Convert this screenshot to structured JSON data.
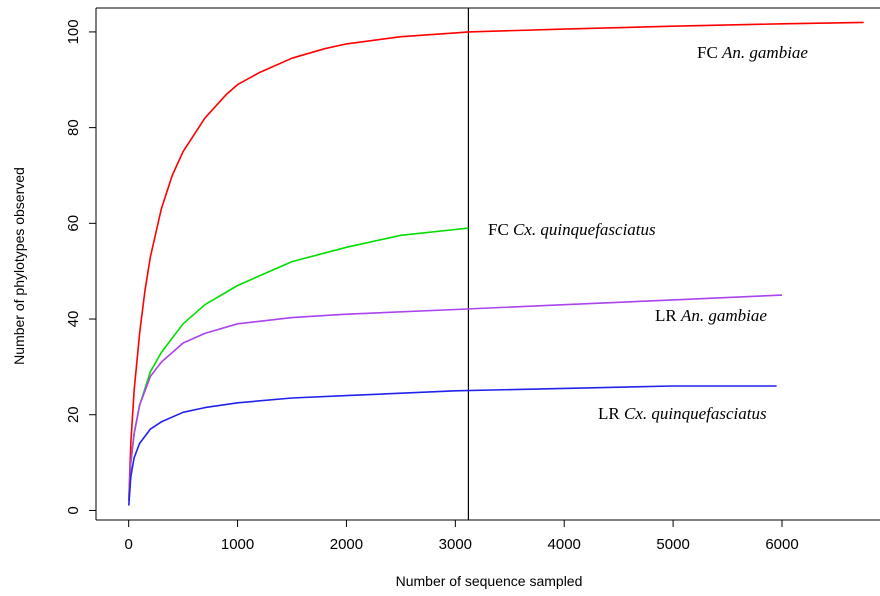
{
  "chart_data": {
    "type": "line",
    "title": "",
    "xlabel": "Number of sequence sampled",
    "ylabel": "Number of phylotypes observed",
    "xlim": [
      -300,
      6900
    ],
    "ylim": [
      -2,
      105
    ],
    "xticks": [
      0,
      1000,
      2000,
      3000,
      4000,
      5000,
      6000
    ],
    "yticks": [
      0,
      20,
      40,
      60,
      80,
      100
    ],
    "vline": 3120,
    "grid": false,
    "series": [
      {
        "name_prefix": "FC",
        "name_species": "An. gambiae",
        "color": "#ff0000",
        "x": [
          1,
          20,
          50,
          100,
          150,
          200,
          300,
          400,
          500,
          700,
          900,
          1000,
          1200,
          1500,
          1800,
          2000,
          2500,
          3000,
          3120,
          4000,
          5000,
          6000,
          6750
        ],
        "y": [
          2,
          14,
          25,
          37,
          46,
          53,
          63,
          70,
          75,
          82,
          87,
          89,
          91.5,
          94.5,
          96.5,
          97.5,
          99,
          99.8,
          100,
          100.6,
          101.2,
          101.7,
          102
        ]
      },
      {
        "name_prefix": "FC",
        "name_species": "Cx. quinquefasciatus",
        "color": "#00dd00",
        "x": [
          1,
          20,
          50,
          100,
          200,
          300,
          500,
          700,
          1000,
          1500,
          2000,
          2500,
          3000,
          3120
        ],
        "y": [
          2,
          10,
          16,
          22,
          29,
          33,
          39,
          43,
          47,
          52,
          55,
          57.5,
          58.7,
          59
        ]
      },
      {
        "name_prefix": "LR",
        "name_species": "An. gambiae",
        "color": "#aa44ee",
        "x": [
          1,
          20,
          50,
          100,
          200,
          300,
          500,
          700,
          1000,
          1500,
          2000,
          3000,
          4000,
          5000,
          6000
        ],
        "y": [
          2,
          10,
          16,
          22,
          28,
          31,
          35,
          37,
          39,
          40.3,
          41,
          42,
          43,
          44,
          45
        ]
      },
      {
        "name_prefix": "LR",
        "name_species": "Cx. quinquefasciatus",
        "color": "#2222ee",
        "x": [
          1,
          20,
          50,
          100,
          200,
          300,
          500,
          700,
          1000,
          1500,
          2000,
          3000,
          4000,
          5000,
          5950
        ],
        "y": [
          1,
          7,
          11,
          14,
          17,
          18.5,
          20.5,
          21.5,
          22.5,
          23.5,
          24,
          25,
          25.5,
          26,
          26
        ]
      }
    ]
  }
}
